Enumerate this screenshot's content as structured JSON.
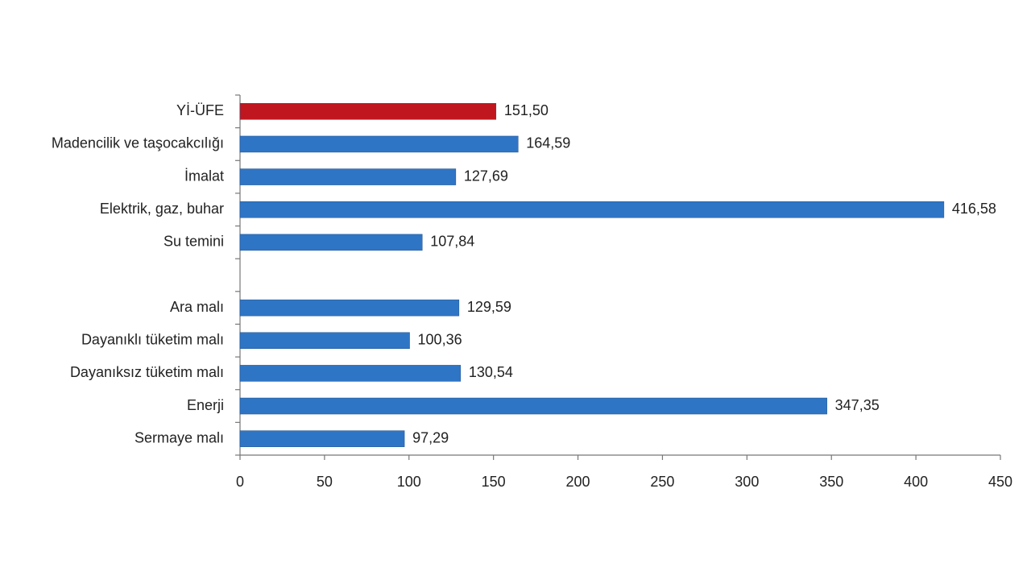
{
  "chart_data": {
    "type": "bar",
    "orientation": "horizontal",
    "categories": [
      "Yİ-ÜFE",
      "Madencilik ve taşocakcılığı",
      "İmalat",
      "Elektrik, gaz, buhar",
      "Su temini",
      null,
      "Ara malı",
      "Dayanıklı tüketim malı",
      "Dayanıksız tüketim malı",
      "Enerji",
      "Sermaye malı"
    ],
    "values": [
      151.5,
      164.59,
      127.69,
      416.58,
      107.84,
      null,
      129.59,
      100.36,
      130.54,
      347.35,
      97.29
    ],
    "value_labels": [
      "151,50",
      "164,59",
      "127,69",
      "416,58",
      "107,84",
      null,
      "129,59",
      "100,36",
      "130,54",
      "347,35",
      "97,29"
    ],
    "colors": [
      "#c0161f",
      "#2e75c6",
      "#2e75c6",
      "#2e75c6",
      "#2e75c6",
      null,
      "#2e75c6",
      "#2e75c6",
      "#2e75c6",
      "#2e75c6",
      "#2e75c6"
    ],
    "xlim": [
      0,
      450
    ],
    "xticks": [
      0,
      50,
      100,
      150,
      200,
      250,
      300,
      350,
      400,
      450
    ],
    "grid": false
  }
}
